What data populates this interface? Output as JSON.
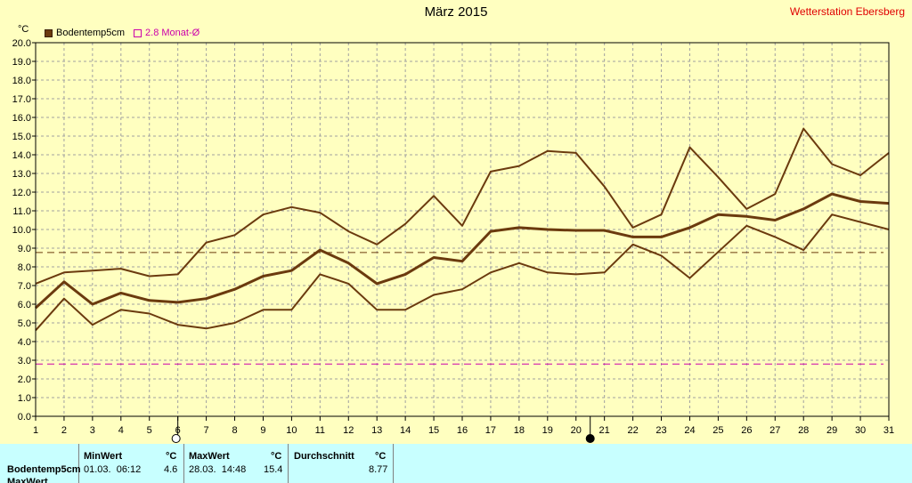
{
  "header": {
    "title": "März 2015",
    "station": "Wetterstation Ebersberg",
    "unit": "°C"
  },
  "legend": {
    "series_label": "Bodentemp5cm",
    "avg_label": "2.8 Monat-Ø"
  },
  "colors": {
    "background": "#ffffc0",
    "series": "#6b3a0e",
    "average": "#cc00aa",
    "grid": "#a0a0a0",
    "table": "#c8ffff",
    "station": "#e00000"
  },
  "chart_data": {
    "type": "line",
    "title": "März 2015",
    "ylabel": "°C",
    "x": [
      1,
      2,
      3,
      4,
      5,
      6,
      7,
      8,
      9,
      10,
      11,
      12,
      13,
      14,
      15,
      16,
      17,
      18,
      19,
      20,
      21,
      22,
      23,
      24,
      25,
      26,
      27,
      28,
      29,
      30,
      31
    ],
    "xlim": [
      1,
      31
    ],
    "ylim": [
      0,
      20
    ],
    "y_ticks": [
      0,
      1,
      2,
      3,
      4,
      5,
      6,
      7,
      8,
      9,
      10,
      11,
      12,
      13,
      14,
      15,
      16,
      17,
      18,
      19,
      20
    ],
    "grid": true,
    "legend_position": "top-left",
    "series": [
      {
        "role": "max",
        "values": [
          7.1,
          7.7,
          7.8,
          7.9,
          7.5,
          7.6,
          9.3,
          9.7,
          10.8,
          11.2,
          10.9,
          9.9,
          9.2,
          10.3,
          11.8,
          10.2,
          13.1,
          13.4,
          14.2,
          14.1,
          12.3,
          10.1,
          10.8,
          14.4,
          12.8,
          11.1,
          11.9,
          15.4,
          13.5,
          12.9,
          14.1
        ]
      },
      {
        "name": "Bodentemp5cm",
        "role": "mean",
        "values": [
          5.8,
          7.2,
          6.0,
          6.6,
          6.2,
          6.1,
          6.3,
          6.8,
          7.5,
          7.8,
          8.9,
          8.2,
          7.1,
          7.6,
          8.5,
          8.3,
          9.9,
          10.1,
          10.0,
          9.95,
          9.95,
          9.6,
          9.6,
          10.1,
          10.8,
          10.7,
          10.5,
          11.1,
          11.9,
          11.5,
          11.4
        ]
      },
      {
        "role": "min",
        "values": [
          4.6,
          6.3,
          4.9,
          5.7,
          5.5,
          4.9,
          4.7,
          5.0,
          5.7,
          5.7,
          7.6,
          7.1,
          5.7,
          5.7,
          6.5,
          6.8,
          7.7,
          8.2,
          7.7,
          7.6,
          7.7,
          9.2,
          8.6,
          7.4,
          8.8,
          10.2,
          9.6,
          8.9,
          10.8,
          10.4,
          10.0
        ]
      }
    ],
    "reference_lines": [
      {
        "label": "2.8 Monat-Ø",
        "value": 2.8,
        "style": "dashed",
        "color": "#cc00aa"
      },
      {
        "value": 8.77,
        "style": "dashed",
        "color": "#6b3a0e"
      }
    ],
    "moon_markers": [
      {
        "day": 6,
        "phase": "full"
      },
      {
        "day": 20.5,
        "phase": "new"
      }
    ]
  },
  "stats_table": {
    "row_label": "Bodentemp5cm",
    "row2_label": "MaxWert",
    "min_header": "MinWert",
    "max_header": "MaxWert",
    "avg_header": "Durchschnitt",
    "unit": "°C",
    "min_time": "01.03.  06:12",
    "min_value": "4.6",
    "max_time": "28.03.  14:48",
    "max_value": "15.4",
    "avg_value": "8.77"
  }
}
